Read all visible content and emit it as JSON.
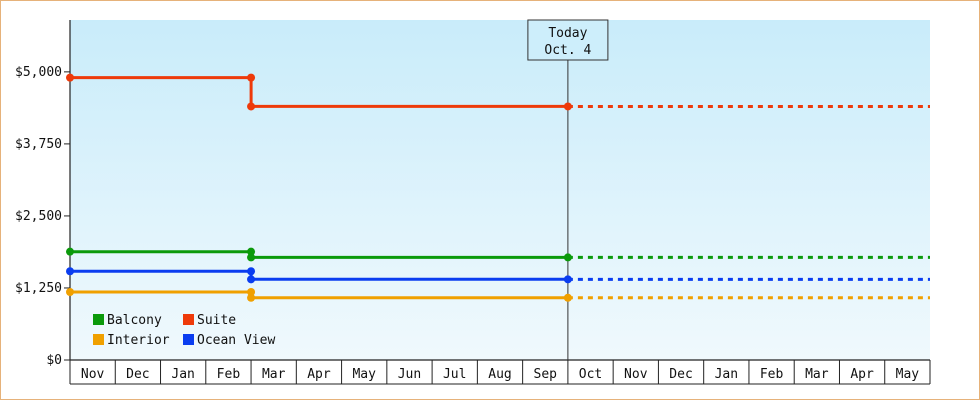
{
  "chart_data": {
    "type": "line",
    "step": true,
    "months": [
      "Nov",
      "Dec",
      "Jan",
      "Feb",
      "Mar",
      "Apr",
      "May",
      "Jun",
      "Jul",
      "Aug",
      "Sep",
      "Oct",
      "Nov",
      "Dec",
      "Jan",
      "Feb",
      "Mar",
      "Apr",
      "May"
    ],
    "y_ticks": [
      {
        "value": 0,
        "label": "$0"
      },
      {
        "value": 1250,
        "label": "$1,250"
      },
      {
        "value": 2500,
        "label": "$2,500"
      },
      {
        "value": 3750,
        "label": "$3,750"
      },
      {
        "value": 5000,
        "label": "$5,000"
      }
    ],
    "ylim": [
      0,
      5900
    ],
    "today": {
      "line1": "Today",
      "line2": "Oct. 4",
      "month_pos": 11
    },
    "series": [
      {
        "name": "Balcony",
        "color": "#0b9a0b",
        "points": [
          [
            0,
            1880
          ],
          [
            4,
            1880
          ],
          [
            4,
            1780
          ],
          [
            11,
            1780
          ]
        ],
        "projection_end": 19
      },
      {
        "name": "Suite",
        "color": "#ee3a0a",
        "points": [
          [
            0,
            4900
          ],
          [
            4,
            4900
          ],
          [
            4,
            4400
          ],
          [
            11,
            4400
          ]
        ],
        "projection_end": 19
      },
      {
        "name": "Interior",
        "color": "#f0a000",
        "points": [
          [
            0,
            1180
          ],
          [
            4,
            1180
          ],
          [
            4,
            1080
          ],
          [
            11,
            1080
          ]
        ],
        "projection_end": 19
      },
      {
        "name": "Ocean View",
        "color": "#0a3df0",
        "points": [
          [
            0,
            1540
          ],
          [
            4,
            1540
          ],
          [
            4,
            1400
          ],
          [
            11,
            1400
          ]
        ],
        "projection_end": 19
      }
    ],
    "legend_position": "bottom-left"
  }
}
